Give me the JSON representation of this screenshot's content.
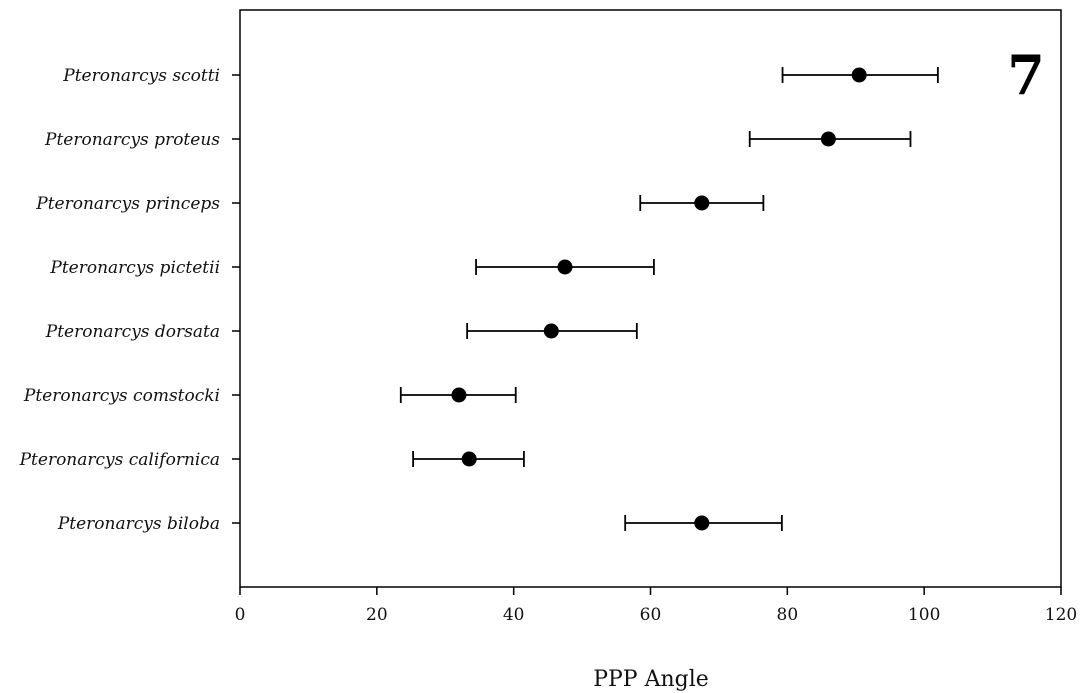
{
  "panel_label": "7",
  "chart_data": {
    "type": "scatter",
    "title": "",
    "xlabel": "PPP Angle",
    "ylabel": "",
    "xlim": [
      0,
      120
    ],
    "x_ticks": [
      0,
      20,
      40,
      60,
      80,
      100,
      120
    ],
    "grid": false,
    "legend": "none",
    "marker_color": "#000000",
    "categories": [
      "Pteronarcys scotti",
      "Pteronarcys proteus",
      "Pteronarcys princeps",
      "Pteronarcys pictetii",
      "Pteronarcys dorsata",
      "Pteronarcys comstocki",
      "Pteronarcys californica",
      "Pteronarcys biloba"
    ],
    "points": [
      {
        "mean": 90.5,
        "low": 79.3,
        "high": 102.0
      },
      {
        "mean": 86.0,
        "low": 74.5,
        "high": 98.0
      },
      {
        "mean": 67.5,
        "low": 58.5,
        "high": 76.5
      },
      {
        "mean": 47.5,
        "low": 34.5,
        "high": 60.5
      },
      {
        "mean": 45.5,
        "low": 33.2,
        "high": 58.0
      },
      {
        "mean": 32.0,
        "low": 23.5,
        "high": 40.3
      },
      {
        "mean": 33.5,
        "low": 25.3,
        "high": 41.5
      },
      {
        "mean": 67.5,
        "low": 56.3,
        "high": 79.2
      }
    ]
  }
}
